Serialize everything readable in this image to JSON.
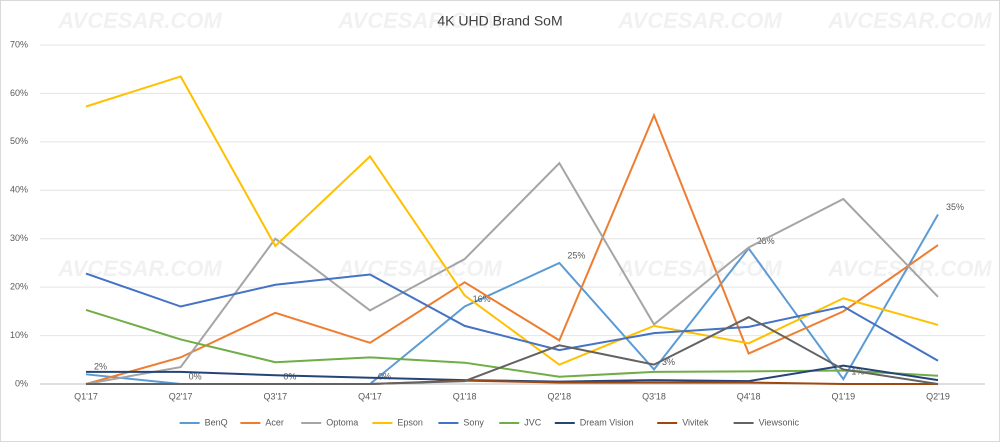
{
  "chart_data": {
    "type": "line",
    "title": "4K UHD Brand SoM",
    "watermark": "AVCESAR.COM",
    "categories": [
      "Q1'17",
      "Q2'17",
      "Q3'17",
      "Q4'17",
      "Q1'18",
      "Q2'18",
      "Q3'18",
      "Q4'18",
      "Q1'19",
      "Q2'19"
    ],
    "ylim": [
      0,
      70
    ],
    "yticks": [
      {
        "value": 0,
        "label": "0%"
      },
      {
        "value": 10,
        "label": "10%"
      },
      {
        "value": 20,
        "label": "20%"
      },
      {
        "value": 30,
        "label": "30%"
      },
      {
        "value": 40,
        "label": "40%"
      },
      {
        "value": 50,
        "label": "50%"
      },
      {
        "value": 60,
        "label": "60%"
      },
      {
        "value": 70,
        "label": "70%"
      }
    ],
    "grid": true,
    "legend": "bottom",
    "series": [
      {
        "name": "BenQ",
        "color": "#5b9bd5",
        "values": [
          2,
          0,
          0,
          0,
          16,
          25,
          3,
          28,
          1,
          35
        ],
        "value_labels": [
          "2%",
          "0%",
          "0%",
          "0%",
          "16%",
          "25%",
          "3%",
          "28%",
          "1%",
          "35%"
        ]
      },
      {
        "name": "Acer",
        "color": "#ed7d31",
        "values": [
          0,
          5.5,
          14.7,
          8.5,
          21,
          9,
          55.5,
          6.3,
          15,
          28.7
        ]
      },
      {
        "name": "Optoma",
        "color": "#a5a5a5",
        "values": [
          0,
          3.5,
          30,
          15.2,
          25.8,
          45.6,
          12.3,
          28.2,
          38.2,
          18
        ]
      },
      {
        "name": "Epson",
        "color": "#ffc000",
        "values": [
          57.3,
          63.5,
          28.5,
          47,
          18.3,
          4,
          12,
          8.4,
          17.7,
          12.2
        ]
      },
      {
        "name": "Sony",
        "color": "#4472c4",
        "values": [
          22.8,
          16,
          20.5,
          22.6,
          12,
          7,
          10.5,
          11.8,
          16,
          4.8
        ]
      },
      {
        "name": "JVC",
        "color": "#70ad47",
        "values": [
          15.3,
          9.2,
          4.5,
          5.5,
          4.4,
          1.5,
          2.5,
          2.6,
          2.8,
          1.7
        ]
      },
      {
        "name": "Dream Vision",
        "color": "#264478",
        "values": [
          2.5,
          2.5,
          1.8,
          1.3,
          0.8,
          0.5,
          0.8,
          0.6,
          3.8,
          0.8
        ]
      },
      {
        "name": "Vivitek",
        "color": "#9e480e",
        "values": [
          0,
          0,
          0,
          0,
          0.7,
          0.3,
          0.3,
          0.3,
          0,
          0
        ]
      },
      {
        "name": "Viewsonic",
        "color": "#636363",
        "values": [
          0,
          0,
          0,
          0,
          0.6,
          8,
          4,
          13.8,
          3,
          0
        ]
      }
    ]
  }
}
